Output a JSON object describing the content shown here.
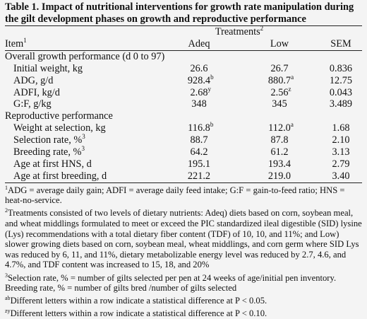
{
  "title": "Table 1. Impact of nutritional interventions for growth rate manipulation during the gilt development phases on growth and reproductive performance",
  "header": {
    "item": "Item",
    "item_sup": "1",
    "treatments": "Treatments",
    "treatments_sup": "2",
    "adeq": "Adeq",
    "low": "Low",
    "sem": "SEM"
  },
  "sections": [
    {
      "label": "Overall growth performance (d 0 to 97)",
      "rows": [
        {
          "item": "Initial weight, kg",
          "item_sup": "",
          "adeq": "26.6",
          "adeq_sup": "",
          "low": "26.7",
          "low_sup": "",
          "sem": "0.836"
        },
        {
          "item": "ADG, g/d",
          "item_sup": "",
          "adeq": "928.4",
          "adeq_sup": "b",
          "low": "880.7",
          "low_sup": "a",
          "sem": "12.75"
        },
        {
          "item": "ADFI, kg/d",
          "item_sup": "",
          "adeq": "2.68",
          "adeq_sup": "y",
          "low": "2.56",
          "low_sup": "z",
          "sem": "0.043"
        },
        {
          "item": "G:F, g/kg",
          "item_sup": "",
          "adeq": "348",
          "adeq_sup": "",
          "low": "345",
          "low_sup": "",
          "sem": "3.489"
        }
      ]
    },
    {
      "label": "Reproductive performance",
      "rows": [
        {
          "item": "Weight at selection, kg",
          "item_sup": "",
          "adeq": "116.8",
          "adeq_sup": "b",
          "low": "112.0",
          "low_sup": "a",
          "sem": "1.68"
        },
        {
          "item": "Selection rate, %",
          "item_sup": "3",
          "adeq": "88.7",
          "adeq_sup": "",
          "low": "87.8",
          "low_sup": "",
          "sem": "2.10"
        },
        {
          "item": "Breeding rate, %",
          "item_sup": "3",
          "adeq": "64.2",
          "adeq_sup": "",
          "low": "61.2",
          "low_sup": "",
          "sem": "3.13"
        },
        {
          "item": "Age at first HNS, d",
          "item_sup": "",
          "adeq": "195.1",
          "adeq_sup": "",
          "low": "193.4",
          "low_sup": "",
          "sem": "2.79"
        },
        {
          "item": "Age at first breeding, d",
          "item_sup": "",
          "adeq": "221.2",
          "adeq_sup": "",
          "low": "219.0",
          "low_sup": "",
          "sem": "3.40"
        }
      ]
    }
  ],
  "footnotes": [
    {
      "sup": "1",
      "text": "ADG = average daily gain; ADFI = average daily feed intake; G:F = gain-to-feed ratio; HNS = heat-no-service."
    },
    {
      "sup": "2",
      "text": "Treatments consisted of two levels of dietary nutrients: Adeq) diets based on corn, soybean meal, and wheat middlings formulated to meet or exceed the PIC standardized ileal digestible (SID) lysine (Lys) recommendations with a total dietary fiber content (TDF) of 10, 10, and 11%; and Low) slower growing diets based on corn, soybean meal, wheat middlings, and corn germ where SID Lys was reduced by 6, 11, and 11%, dietary metabolizable energy level was reduced by 2.7, 4.6, and 4.7%, and TDF content was increased to 15, 18, and 20%"
    },
    {
      "sup": "3",
      "text": "Selection rate, % = number of gilts selected per pen at 24 weeks of age/initial pen inventory. Breeding rate, % = number of gilts bred /number of gilts selected"
    },
    {
      "sup": "ab",
      "text": "Different letters within a row indicate a statistical difference at P < 0.05."
    },
    {
      "sup": "zy",
      "text": "Different letters within a row indicate a statistical difference at P < 0.10."
    }
  ]
}
